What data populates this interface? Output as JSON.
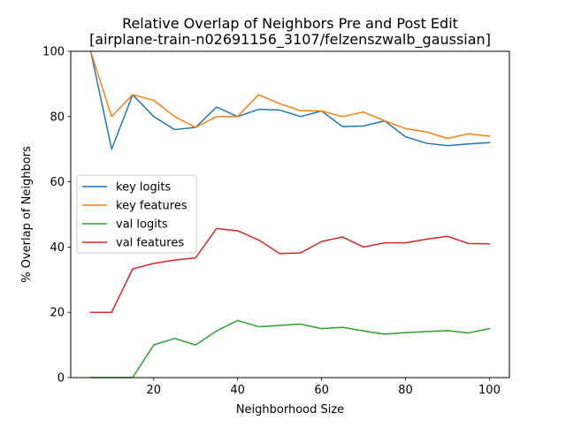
{
  "chart_data": {
    "type": "line",
    "title_line1": "Relative Overlap of Neighbors Pre and Post Edit",
    "title_line2": "[airplane-train-n02691156_3107/felzenszwalb_gaussian]",
    "xlabel": "Neighborhood Size",
    "ylabel": "% Overlap of Neighbors",
    "xlim": [
      0.25,
      104.75
    ],
    "ylim": [
      0,
      100
    ],
    "xticks": [
      20,
      40,
      60,
      80,
      100
    ],
    "yticks": [
      0,
      20,
      40,
      60,
      80,
      100
    ],
    "grid": false,
    "legend_position": "center-left",
    "x": [
      5,
      10,
      15,
      20,
      25,
      30,
      35,
      40,
      45,
      50,
      55,
      60,
      65,
      70,
      75,
      80,
      85,
      90,
      95,
      100
    ],
    "series": [
      {
        "name": "key logits",
        "color": "#1f77b4",
        "values": [
          100,
          70,
          86.7,
          80,
          76,
          76.7,
          82.9,
          80,
          82.2,
          82,
          80,
          81.7,
          76.9,
          77.1,
          78.7,
          73.8,
          71.8,
          71.1,
          71.6,
          72
        ]
      },
      {
        "name": "key features",
        "color": "#ff7f0e",
        "values": [
          100,
          80,
          86.7,
          85,
          80,
          76.7,
          80,
          80,
          86.7,
          84,
          81.8,
          81.7,
          80,
          81.4,
          78.7,
          76.3,
          75.3,
          73.3,
          74.7,
          74
        ]
      },
      {
        "name": "val logits",
        "color": "#2ca02c",
        "values": [
          0,
          0,
          0,
          10,
          12,
          10,
          14.3,
          17.5,
          15.6,
          16,
          16.4,
          15,
          15.4,
          14.3,
          13.3,
          13.8,
          14.1,
          14.4,
          13.7,
          15
        ]
      },
      {
        "name": "val features",
        "color": "#d62728",
        "values": [
          20,
          20,
          33.3,
          35,
          36,
          36.7,
          45.7,
          45,
          42.2,
          38,
          38.2,
          41.7,
          43.1,
          40,
          41.3,
          41.3,
          42.4,
          43.3,
          41.1,
          41
        ]
      }
    ]
  }
}
